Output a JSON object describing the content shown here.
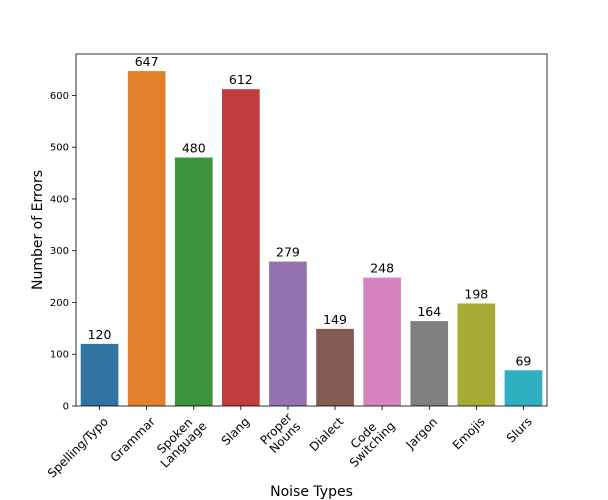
{
  "chart_data": {
    "type": "bar",
    "title": "",
    "xlabel": "Noise Types",
    "ylabel": "Number of Errors",
    "ylim": [
      0,
      680
    ],
    "yticks": [
      0,
      100,
      200,
      300,
      400,
      500,
      600
    ],
    "grid": false,
    "categories": [
      [
        "Spelling/Typo"
      ],
      [
        "Grammar"
      ],
      [
        "Spoken",
        "Language"
      ],
      [
        "Slang"
      ],
      [
        "Proper",
        "Nouns"
      ],
      [
        "Dialect"
      ],
      [
        "Code",
        "Switching"
      ],
      [
        "Jargon"
      ],
      [
        "Emojis"
      ],
      [
        "Slurs"
      ]
    ],
    "values": [
      120,
      647,
      480,
      612,
      279,
      149,
      248,
      164,
      198,
      69
    ],
    "colors": [
      "#3274a1",
      "#e1812c",
      "#3a923a",
      "#c03d3e",
      "#9372b2",
      "#845b53",
      "#d684bd",
      "#7f7f7f",
      "#a9aa35",
      "#2eb0c0"
    ]
  }
}
